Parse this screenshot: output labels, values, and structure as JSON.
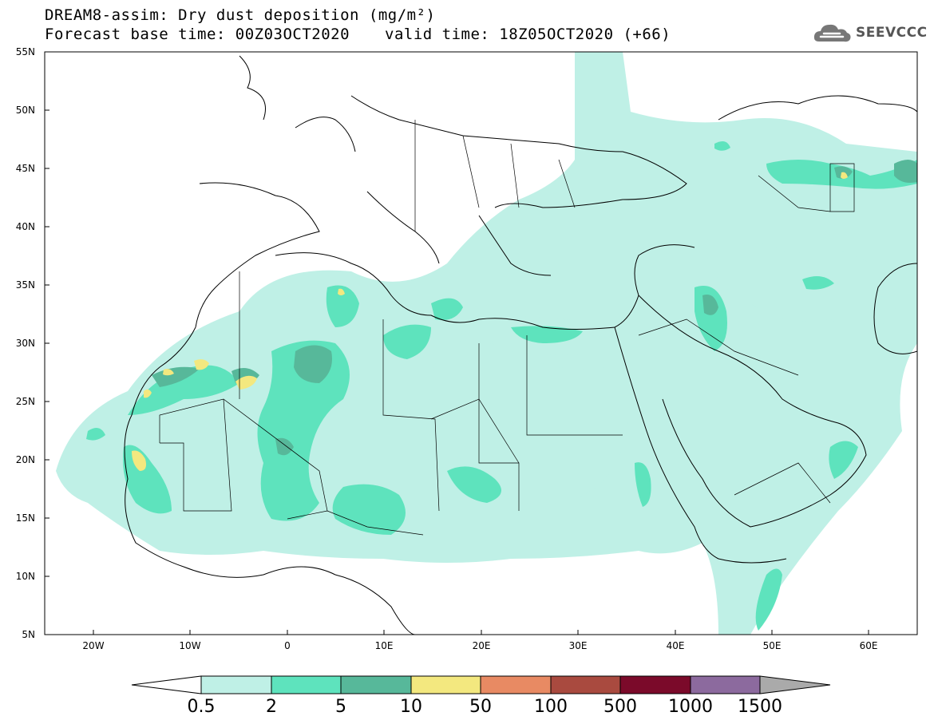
{
  "header": {
    "title": "DREAM8-assim: Dry dust deposition (mg/m²)",
    "base_time": "Forecast base time: 00Z03OCT2020",
    "valid_time": "valid time: 18Z05OCT2020 (+66)",
    "logo_text": "SEEVCCC"
  },
  "axes": {
    "lat_labels": [
      "55N",
      "50N",
      "45N",
      "40N",
      "35N",
      "30N",
      "25N",
      "20N",
      "15N",
      "10N",
      "5N"
    ],
    "lon_labels": [
      "20W",
      "10W",
      "0",
      "10E",
      "20E",
      "30E",
      "40E",
      "50E",
      "60E"
    ]
  },
  "colorbar": {
    "labels": [
      "0.5",
      "2",
      "5",
      "10",
      "50",
      "100",
      "500",
      "1000",
      "1500"
    ],
    "colors": [
      "#ffffff",
      "#bff0e6",
      "#5ee3bd",
      "#57b89a",
      "#f3e87f",
      "#e88a63",
      "#a94a3f",
      "#7b0a2a",
      "#8c6a9e",
      "#aaaaaa"
    ]
  },
  "icons": {
    "logo": "cloud-logo-icon"
  }
}
